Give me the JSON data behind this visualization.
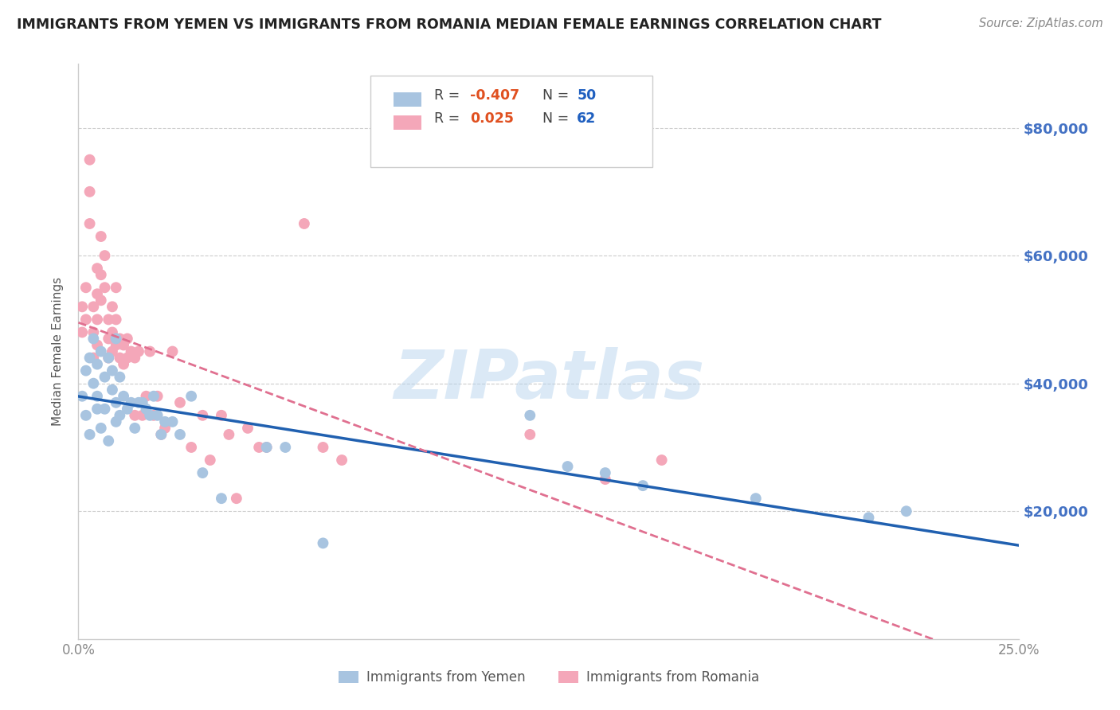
{
  "title": "IMMIGRANTS FROM YEMEN VS IMMIGRANTS FROM ROMANIA MEDIAN FEMALE EARNINGS CORRELATION CHART",
  "source": "Source: ZipAtlas.com",
  "ylabel": "Median Female Earnings",
  "ytick_labels": [
    "$20,000",
    "$40,000",
    "$60,000",
    "$80,000"
  ],
  "ytick_values": [
    20000,
    40000,
    60000,
    80000
  ],
  "xlim": [
    0.0,
    0.25
  ],
  "ylim": [
    0,
    90000
  ],
  "legend_r_yemen": "-0.407",
  "legend_n_yemen": "50",
  "legend_r_romania": "0.025",
  "legend_n_romania": "62",
  "color_yemen": "#a8c4e0",
  "color_romania": "#f4a7b9",
  "color_yemen_line": "#2060b0",
  "color_romania_line": "#e07090",
  "watermark": "ZIPatlas",
  "yemen_x": [
    0.001,
    0.002,
    0.002,
    0.003,
    0.003,
    0.004,
    0.004,
    0.005,
    0.005,
    0.005,
    0.006,
    0.006,
    0.007,
    0.007,
    0.008,
    0.008,
    0.009,
    0.009,
    0.01,
    0.01,
    0.01,
    0.011,
    0.011,
    0.012,
    0.013,
    0.014,
    0.015,
    0.016,
    0.017,
    0.018,
    0.019,
    0.02,
    0.021,
    0.022,
    0.023,
    0.025,
    0.027,
    0.03,
    0.033,
    0.038,
    0.05,
    0.055,
    0.065,
    0.12,
    0.13,
    0.14,
    0.15,
    0.18,
    0.21,
    0.22
  ],
  "yemen_y": [
    38000,
    42000,
    35000,
    44000,
    32000,
    47000,
    40000,
    43000,
    36000,
    38000,
    45000,
    33000,
    41000,
    36000,
    44000,
    31000,
    39000,
    42000,
    47000,
    34000,
    37000,
    41000,
    35000,
    38000,
    36000,
    37000,
    33000,
    37000,
    37000,
    36000,
    35000,
    38000,
    35000,
    32000,
    34000,
    34000,
    32000,
    38000,
    26000,
    22000,
    30000,
    30000,
    15000,
    35000,
    27000,
    26000,
    24000,
    22000,
    19000,
    20000
  ],
  "romania_x": [
    0.001,
    0.001,
    0.002,
    0.002,
    0.003,
    0.003,
    0.003,
    0.004,
    0.004,
    0.004,
    0.005,
    0.005,
    0.005,
    0.005,
    0.006,
    0.006,
    0.006,
    0.007,
    0.007,
    0.008,
    0.008,
    0.008,
    0.009,
    0.009,
    0.009,
    0.01,
    0.01,
    0.01,
    0.011,
    0.011,
    0.012,
    0.012,
    0.013,
    0.013,
    0.014,
    0.015,
    0.015,
    0.016,
    0.017,
    0.018,
    0.019,
    0.02,
    0.021,
    0.022,
    0.023,
    0.025,
    0.027,
    0.03,
    0.033,
    0.035,
    0.038,
    0.04,
    0.042,
    0.045,
    0.048,
    0.05,
    0.06,
    0.065,
    0.07,
    0.12,
    0.14,
    0.155
  ],
  "romania_y": [
    52000,
    48000,
    55000,
    50000,
    75000,
    70000,
    65000,
    52000,
    48000,
    44000,
    58000,
    54000,
    50000,
    46000,
    63000,
    57000,
    53000,
    60000,
    55000,
    50000,
    47000,
    44000,
    52000,
    48000,
    45000,
    55000,
    50000,
    46000,
    47000,
    44000,
    46000,
    43000,
    47000,
    44000,
    45000,
    44000,
    35000,
    45000,
    35000,
    38000,
    45000,
    35000,
    38000,
    32000,
    33000,
    45000,
    37000,
    30000,
    35000,
    28000,
    35000,
    32000,
    22000,
    33000,
    30000,
    30000,
    65000,
    30000,
    28000,
    32000,
    25000,
    28000
  ]
}
